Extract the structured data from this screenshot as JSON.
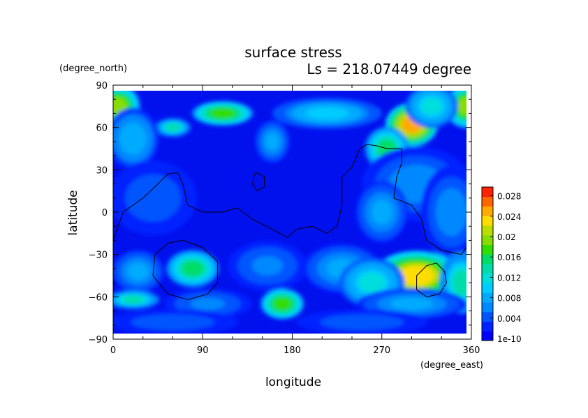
{
  "chart_data": {
    "type": "heatmap",
    "title": "surface stress",
    "subtitle": "Ls = 218.07449 degree",
    "xlabel": "longitude",
    "ylabel": "latitude",
    "x_unit": "(degree_east)",
    "y_unit": "(degree_north)",
    "xlim": [
      0,
      360
    ],
    "ylim": [
      -90,
      90
    ],
    "x_ticks": [
      0,
      90,
      180,
      270,
      360
    ],
    "y_ticks": [
      -90,
      -60,
      -30,
      0,
      30,
      60,
      90
    ],
    "colorbar": {
      "labels": [
        "1e-10",
        "0.004",
        "0.008",
        "0.012",
        "0.016",
        "0.02",
        "0.024",
        "0.028"
      ],
      "min": 0,
      "max": 0.03,
      "colors": [
        "#0000ff",
        "#0022ff",
        "#0055ff",
        "#0088ff",
        "#00aaff",
        "#00ccff",
        "#00dddd",
        "#00ddaa",
        "#00dd66",
        "#33dd00",
        "#88dd00",
        "#bbdd00",
        "#ffdd00",
        "#ffaa00",
        "#ff6600",
        "#ff2200"
      ]
    },
    "fields": [
      {
        "lon": 5,
        "lat": 75,
        "value": 0.02,
        "sx": 10,
        "sy": 7
      },
      {
        "lon": 355,
        "lat": 75,
        "value": 0.02,
        "sx": 10,
        "sy": 7
      },
      {
        "lon": 110,
        "lat": 70,
        "value": 0.018,
        "sx": 14,
        "sy": 4
      },
      {
        "lon": 215,
        "lat": 70,
        "value": 0.01,
        "sx": 25,
        "sy": 5
      },
      {
        "lon": 300,
        "lat": 62,
        "value": 0.025,
        "sx": 12,
        "sy": 7
      },
      {
        "lon": 275,
        "lat": 45,
        "value": 0.016,
        "sx": 10,
        "sy": 7
      },
      {
        "lon": 320,
        "lat": 75,
        "value": 0.012,
        "sx": 12,
        "sy": 7
      },
      {
        "lon": 60,
        "lat": 60,
        "value": 0.014,
        "sx": 8,
        "sy": 3
      },
      {
        "lon": 160,
        "lat": 50,
        "value": 0.008,
        "sx": 8,
        "sy": 7
      },
      {
        "lon": 20,
        "lat": 52,
        "value": 0.009,
        "sx": 12,
        "sy": 10
      },
      {
        "lon": 305,
        "lat": 20,
        "value": 0.007,
        "sx": 25,
        "sy": 12
      },
      {
        "lon": 270,
        "lat": 0,
        "value": 0.008,
        "sx": 12,
        "sy": 10
      },
      {
        "lon": 340,
        "lat": 0,
        "value": 0.007,
        "sx": 14,
        "sy": 15
      },
      {
        "lon": 40,
        "lat": 10,
        "value": 0.005,
        "sx": 20,
        "sy": 12
      },
      {
        "lon": 80,
        "lat": -40,
        "value": 0.016,
        "sx": 12,
        "sy": 6
      },
      {
        "lon": 25,
        "lat": -42,
        "value": 0.008,
        "sx": 12,
        "sy": 7
      },
      {
        "lon": 155,
        "lat": -38,
        "value": 0.006,
        "sx": 18,
        "sy": 8
      },
      {
        "lon": 230,
        "lat": -40,
        "value": 0.008,
        "sx": 18,
        "sy": 8
      },
      {
        "lon": 305,
        "lat": -45,
        "value": 0.024,
        "sx": 20,
        "sy": 8
      },
      {
        "lon": 260,
        "lat": -50,
        "value": 0.012,
        "sx": 15,
        "sy": 8
      },
      {
        "lon": 350,
        "lat": -50,
        "value": 0.014,
        "sx": 10,
        "sy": 10
      },
      {
        "lon": 20,
        "lat": -62,
        "value": 0.014,
        "sx": 12,
        "sy": 3
      },
      {
        "lon": 170,
        "lat": -65,
        "value": 0.018,
        "sx": 10,
        "sy": 5
      },
      {
        "lon": 95,
        "lat": -65,
        "value": 0.006,
        "sx": 20,
        "sy": 5
      },
      {
        "lon": 300,
        "lat": -65,
        "value": 0.008,
        "sx": 25,
        "sy": 5
      },
      {
        "lon": 60,
        "lat": -78,
        "value": 0.005,
        "sx": 30,
        "sy": 4
      },
      {
        "lon": 250,
        "lat": -78,
        "value": 0.005,
        "sx": 30,
        "sy": 4
      }
    ],
    "contours": [
      {
        "points": [
          [
            0,
            -20
          ],
          [
            10,
            0
          ],
          [
            30,
            10
          ],
          [
            45,
            20
          ],
          [
            55,
            27
          ],
          [
            65,
            28
          ],
          [
            70,
            20
          ],
          [
            75,
            5
          ],
          [
            90,
            0
          ],
          [
            110,
            0
          ],
          [
            125,
            3
          ],
          [
            140,
            -5
          ],
          [
            160,
            -12
          ],
          [
            175,
            -18
          ],
          [
            185,
            -12
          ],
          [
            200,
            -10
          ],
          [
            215,
            -15
          ],
          [
            225,
            -10
          ],
          [
            230,
            5
          ],
          [
            230,
            25
          ],
          [
            240,
            32
          ],
          [
            248,
            45
          ],
          [
            255,
            48
          ],
          [
            265,
            47
          ],
          [
            275,
            45
          ],
          [
            290,
            45
          ],
          [
            290,
            35
          ],
          [
            285,
            25
          ],
          [
            282,
            10
          ],
          [
            300,
            5
          ],
          [
            310,
            -5
          ],
          [
            315,
            -20
          ],
          [
            330,
            -27
          ],
          [
            350,
            -30
          ],
          [
            360,
            -20
          ]
        ]
      },
      {
        "points": [
          [
            145,
            28
          ],
          [
            152,
            25
          ],
          [
            152,
            18
          ],
          [
            145,
            15
          ],
          [
            140,
            20
          ],
          [
            142,
            27
          ],
          [
            145,
            28
          ]
        ]
      },
      {
        "points": [
          [
            70,
            -20
          ],
          [
            90,
            -25
          ],
          [
            105,
            -35
          ],
          [
            105,
            -50
          ],
          [
            95,
            -58
          ],
          [
            75,
            -62
          ],
          [
            55,
            -58
          ],
          [
            40,
            -45
          ],
          [
            42,
            -30
          ],
          [
            55,
            -22
          ],
          [
            70,
            -20
          ]
        ]
      },
      {
        "points": [
          [
            325,
            -36
          ],
          [
            333,
            -42
          ],
          [
            335,
            -50
          ],
          [
            328,
            -58
          ],
          [
            315,
            -60
          ],
          [
            305,
            -55
          ],
          [
            305,
            -45
          ],
          [
            315,
            -38
          ],
          [
            325,
            -36
          ]
        ]
      }
    ]
  }
}
